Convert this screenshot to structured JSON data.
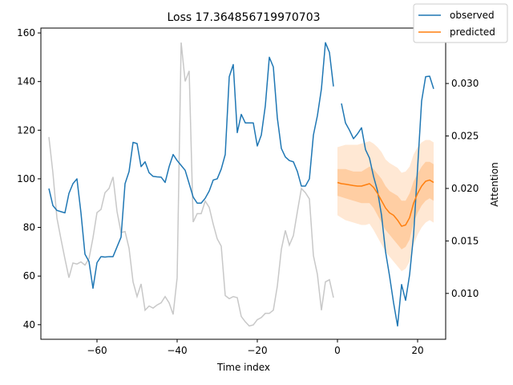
{
  "chart_data": {
    "type": "line",
    "title": "Loss 17.364856719970703",
    "xlabel": "Time index",
    "ylabel": "",
    "y2label": "Attention",
    "xlim": [
      -74,
      27
    ],
    "ylim": [
      34,
      162
    ],
    "y2lim": [
      0.00563,
      0.03528
    ],
    "xticks": [
      -60,
      -40,
      -20,
      0,
      20
    ],
    "xtick_labels": [
      "−60",
      "−40",
      "−20",
      "0",
      "20"
    ],
    "yticks": [
      40,
      60,
      80,
      100,
      120,
      140,
      160
    ],
    "ytick_labels": [
      "40",
      "60",
      "80",
      "100",
      "120",
      "140",
      "160"
    ],
    "y2ticks": [
      0.01,
      0.015,
      0.02,
      0.025,
      0.03
    ],
    "y2tick_labels": [
      "0.010",
      "0.015",
      "0.020",
      "0.025",
      "0.030"
    ],
    "grid": false,
    "legend": {
      "position": "upper-right",
      "entries": [
        {
          "label": "observed",
          "color": "#1f77b4"
        },
        {
          "label": "predicted",
          "color": "#ff7f0e"
        }
      ]
    },
    "series": [
      {
        "name": "observed",
        "axis": "left",
        "color": "#1f77b4",
        "x_start": -72,
        "values": [
          96,
          89,
          87,
          86.5,
          86,
          94,
          98,
          100,
          86,
          69,
          66,
          55,
          65.5,
          68,
          67.8,
          68,
          68,
          72,
          76,
          98,
          103,
          115,
          114.5,
          105,
          107,
          102.5,
          101,
          100.8,
          100.7,
          98.5,
          105,
          110,
          107.5,
          105.5,
          103.5,
          98,
          92.5,
          90,
          90,
          92,
          95,
          99.5,
          100,
          104,
          110,
          142,
          147,
          119,
          126.5,
          123,
          123,
          123,
          113.5,
          118,
          130,
          150,
          146,
          125,
          112.5,
          109,
          107.5,
          107,
          103,
          97,
          97,
          100,
          118,
          126,
          137,
          156,
          152,
          138,
          null,
          131,
          123,
          120,
          116.5,
          118.5,
          121,
          112,
          108.5,
          101,
          95,
          85,
          70,
          60,
          49,
          39.5,
          56.5,
          50,
          60.5,
          77,
          104.5,
          132,
          142,
          142.2,
          137
        ]
      },
      {
        "name": "attention",
        "axis": "right",
        "color": "#c8c8c8",
        "x_start": -72,
        "values": [
          0.0249,
          0.0215,
          0.0172,
          0.0152,
          0.0133,
          0.0115,
          0.0129,
          0.0128,
          0.013,
          0.0127,
          0.0133,
          0.0153,
          0.0177,
          0.018,
          0.0196,
          0.02,
          0.0211,
          0.0178,
          0.0158,
          0.0159,
          0.0143,
          0.0111,
          0.0097,
          0.0109,
          0.0084,
          0.0088,
          0.0086,
          0.0089,
          0.0091,
          0.0097,
          0.0091,
          0.008,
          0.0115,
          0.0339,
          0.0302,
          0.0312,
          0.0168,
          0.0176,
          0.0176,
          0.0188,
          0.0182,
          0.0166,
          0.0152,
          0.0145,
          0.0098,
          0.0095,
          0.0097,
          0.0096,
          0.0078,
          0.0073,
          0.0069,
          0.007,
          0.0075,
          0.0077,
          0.0081,
          0.0081,
          0.0084,
          0.0107,
          0.0142,
          0.016,
          0.0146,
          0.0155,
          0.0178,
          0.02,
          0.0196,
          0.019,
          0.0136,
          0.0118,
          0.0084,
          0.0111,
          0.0113,
          0.0096
        ]
      },
      {
        "name": "predicted",
        "axis": "left",
        "color": "#ff7f0e",
        "x_start": 0,
        "values": [
          98.5,
          98,
          97.8,
          97.5,
          97.2,
          97,
          97,
          97.5,
          98,
          96.5,
          94,
          91,
          88,
          86,
          85,
          83,
          80.5,
          81,
          84,
          90,
          94,
          97,
          99,
          99.5,
          98.5
        ],
        "band_inner_lower": [
          93,
          92.5,
          92,
          91.5,
          91,
          90.5,
          90,
          90,
          90,
          88,
          85,
          82,
          79,
          77,
          75,
          73,
          71,
          72,
          75,
          82,
          86,
          89,
          91,
          92,
          91
        ],
        "band_inner_upper": [
          104,
          104,
          104,
          103.5,
          103,
          103,
          103,
          104,
          105,
          104,
          102,
          100,
          97,
          95,
          94,
          93,
          91,
          91,
          94,
          99,
          102,
          105,
          107,
          107,
          106
        ],
        "band_outer_lower": [
          85,
          84,
          83,
          82.5,
          82,
          81.5,
          81,
          81,
          81.5,
          79,
          76,
          73,
          70,
          68,
          66,
          64,
          62,
          63,
          66,
          73,
          77,
          80,
          82,
          83,
          82
        ],
        "band_outer_upper": [
          113,
          113.5,
          114,
          114,
          114,
          114,
          114.5,
          115,
          115.5,
          114.5,
          113,
          111,
          108,
          106.5,
          105.5,
          104.5,
          102.5,
          103,
          105,
          110,
          113,
          115,
          116,
          116,
          115
        ]
      }
    ]
  }
}
